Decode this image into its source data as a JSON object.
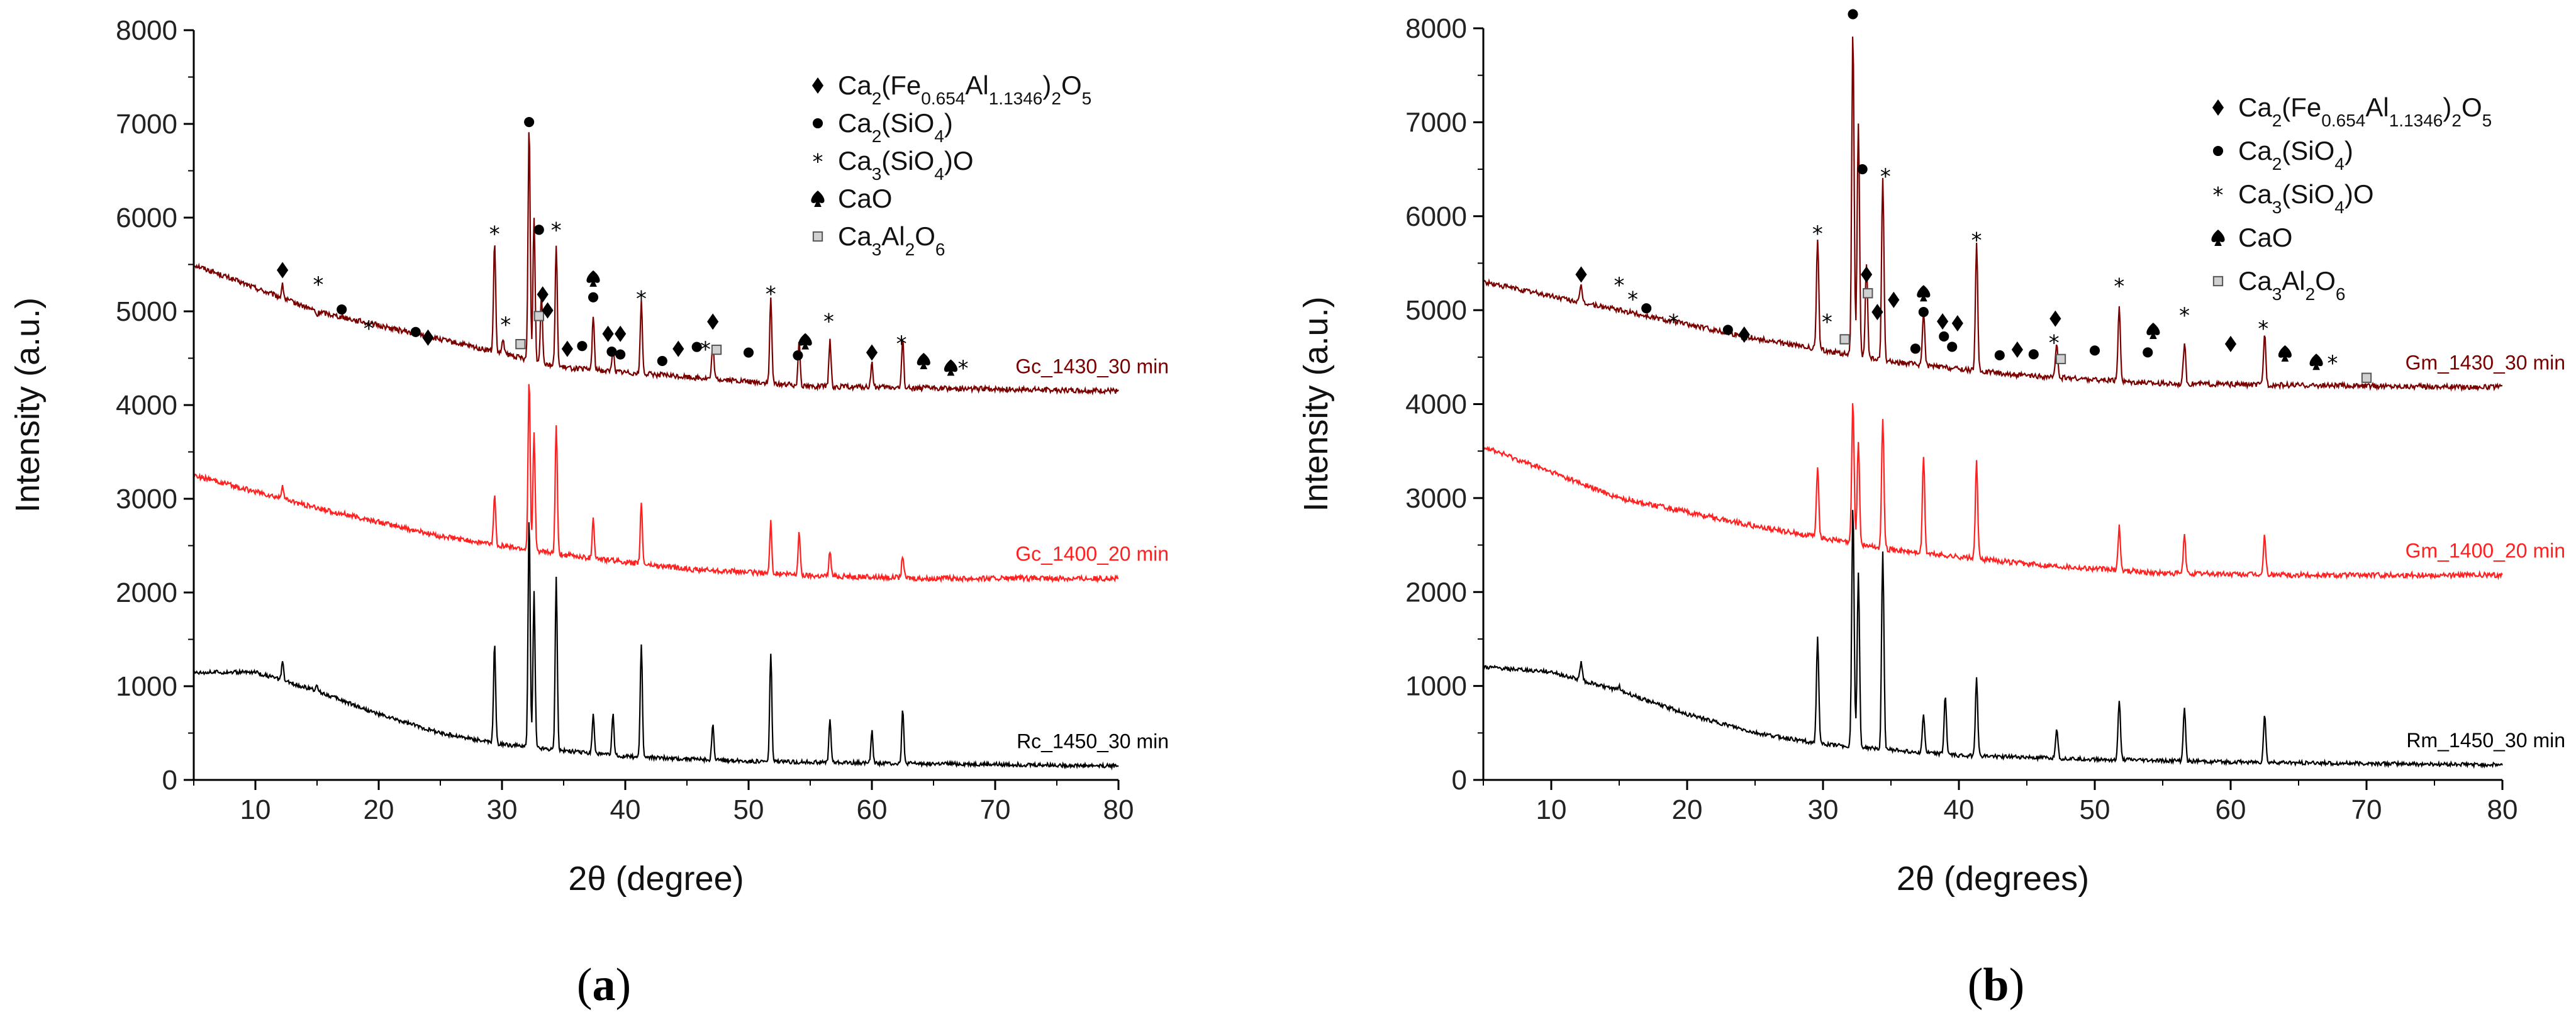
{
  "colors": {
    "series_top": "#7a0000",
    "series_mid": "#ff2020",
    "series_bottom": "#000000",
    "axis": "#000000"
  },
  "legend": [
    {
      "marker": "diamond",
      "name": "Ca2(Fe0.654Al1.1346)2O5"
    },
    {
      "marker": "circle",
      "name": "Ca2(SiO4)"
    },
    {
      "marker": "star",
      "name": "Ca3(SiO4)O"
    },
    {
      "marker": "spade",
      "name": "CaO"
    },
    {
      "marker": "square",
      "name": "Ca3Al2O6"
    }
  ],
  "chart_data": [
    {
      "type": "line",
      "panel_label": "(a)",
      "xlabel": "2θ (degree)",
      "ylabel": "Intensity (a.u.)",
      "xlim": [
        5,
        80
      ],
      "ylim": [
        0,
        8000
      ],
      "xticks": [
        10,
        20,
        30,
        40,
        50,
        60,
        70,
        80
      ],
      "yticks": [
        0,
        1000,
        2000,
        3000,
        4000,
        5000,
        6000,
        7000,
        8000
      ],
      "series": [
        {
          "name": "Gc_1430_30 min",
          "color": "#7a0000",
          "baseline": [
            [
              5,
              5500
            ],
            [
              15,
              5000
            ],
            [
              25,
              4700
            ],
            [
              35,
              4400
            ],
            [
              45,
              4300
            ],
            [
              55,
              4200
            ],
            [
              65,
              4180
            ],
            [
              80,
              4150
            ]
          ],
          "peaks": [
            [
              12.2,
              5280
            ],
            [
              15.0,
              4950
            ],
            [
              29.4,
              5750
            ],
            [
              30.1,
              4700
            ],
            [
              32.2,
              7000
            ],
            [
              32.6,
              6000
            ],
            [
              33.2,
              5200
            ],
            [
              34.4,
              5700
            ],
            [
              37.4,
              4950
            ],
            [
              39.0,
              4600
            ],
            [
              41.3,
              5100
            ],
            [
              47.1,
              4650
            ],
            [
              51.8,
              5150
            ],
            [
              54.1,
              4700
            ],
            [
              56.6,
              4700
            ],
            [
              60.0,
              4450
            ],
            [
              62.5,
              4700
            ]
          ]
        },
        {
          "name": "Gc_1400_20 min",
          "color": "#ff2020",
          "baseline": [
            [
              5,
              3250
            ],
            [
              15,
              2900
            ],
            [
              25,
              2600
            ],
            [
              35,
              2400
            ],
            [
              45,
              2250
            ],
            [
              55,
              2180
            ],
            [
              65,
              2150
            ],
            [
              80,
              2150
            ]
          ],
          "peaks": [
            [
              12.2,
              3150
            ],
            [
              29.4,
              3050
            ],
            [
              32.2,
              4300
            ],
            [
              32.6,
              3700
            ],
            [
              34.4,
              3800
            ],
            [
              37.4,
              2800
            ],
            [
              41.3,
              2950
            ],
            [
              51.8,
              2750
            ],
            [
              54.1,
              2650
            ],
            [
              56.6,
              2450
            ],
            [
              62.5,
              2400
            ]
          ]
        },
        {
          "name": "Rc_1450_30 min",
          "color": "#000000",
          "baseline": [
            [
              5,
              1150
            ],
            [
              10,
              1150
            ],
            [
              15,
              950
            ],
            [
              20,
              700
            ],
            [
              25,
              500
            ],
            [
              30,
              380
            ],
            [
              40,
              250
            ],
            [
              50,
              200
            ],
            [
              60,
              180
            ],
            [
              80,
              150
            ]
          ],
          "peaks": [
            [
              12.2,
              1250
            ],
            [
              15.0,
              1000
            ],
            [
              29.4,
              1450
            ],
            [
              32.2,
              2800
            ],
            [
              32.6,
              2000
            ],
            [
              34.4,
              2150
            ],
            [
              37.4,
              700
            ],
            [
              39.0,
              700
            ],
            [
              41.3,
              1450
            ],
            [
              47.1,
              600
            ],
            [
              51.8,
              1350
            ],
            [
              56.6,
              650
            ],
            [
              60.0,
              520
            ],
            [
              62.5,
              750
            ]
          ]
        }
      ],
      "annotations": [
        {
          "marker": "diamond",
          "x": 12.2,
          "y": 5440
        },
        {
          "marker": "star",
          "x": 15.1,
          "y": 5290
        },
        {
          "marker": "circle",
          "x": 17.0,
          "y": 5020
        },
        {
          "marker": "star",
          "x": 19.2,
          "y": 4820
        },
        {
          "marker": "circle",
          "x": 23.0,
          "y": 4780
        },
        {
          "marker": "diamond",
          "x": 24.0,
          "y": 4720
        },
        {
          "marker": "star",
          "x": 29.4,
          "y": 5830
        },
        {
          "marker": "star",
          "x": 30.3,
          "y": 4860
        },
        {
          "marker": "square",
          "x": 31.5,
          "y": 4650
        },
        {
          "marker": "circle",
          "x": 32.2,
          "y": 7020
        },
        {
          "marker": "circle",
          "x": 33.0,
          "y": 5870
        },
        {
          "marker": "square",
          "x": 33.0,
          "y": 4950
        },
        {
          "marker": "diamond",
          "x": 33.3,
          "y": 5180
        },
        {
          "marker": "diamond",
          "x": 33.7,
          "y": 5010
        },
        {
          "marker": "star",
          "x": 34.4,
          "y": 5870
        },
        {
          "marker": "diamond",
          "x": 35.3,
          "y": 4600
        },
        {
          "marker": "circle",
          "x": 36.5,
          "y": 4630
        },
        {
          "marker": "spade",
          "x": 37.4,
          "y": 5350
        },
        {
          "marker": "circle",
          "x": 37.4,
          "y": 5150
        },
        {
          "marker": "diamond",
          "x": 38.6,
          "y": 4760
        },
        {
          "marker": "circle",
          "x": 38.9,
          "y": 4570
        },
        {
          "marker": "diamond",
          "x": 39.6,
          "y": 4760
        },
        {
          "marker": "circle",
          "x": 39.6,
          "y": 4540
        },
        {
          "marker": "star",
          "x": 41.3,
          "y": 5140
        },
        {
          "marker": "circle",
          "x": 43.0,
          "y": 4470
        },
        {
          "marker": "diamond",
          "x": 44.3,
          "y": 4600
        },
        {
          "marker": "circle",
          "x": 45.8,
          "y": 4620
        },
        {
          "marker": "star",
          "x": 46.5,
          "y": 4600
        },
        {
          "marker": "diamond",
          "x": 47.1,
          "y": 4890
        },
        {
          "marker": "square",
          "x": 47.4,
          "y": 4590
        },
        {
          "marker": "circle",
          "x": 50.0,
          "y": 4560
        },
        {
          "marker": "star",
          "x": 51.8,
          "y": 5190
        },
        {
          "marker": "circle",
          "x": 54.0,
          "y": 4530
        },
        {
          "marker": "spade",
          "x": 54.6,
          "y": 4680
        },
        {
          "marker": "star",
          "x": 56.5,
          "y": 4900
        },
        {
          "marker": "diamond",
          "x": 60.0,
          "y": 4560
        },
        {
          "marker": "star",
          "x": 62.4,
          "y": 4660
        },
        {
          "marker": "spade",
          "x": 64.2,
          "y": 4470
        },
        {
          "marker": "spade",
          "x": 66.4,
          "y": 4400
        },
        {
          "marker": "star",
          "x": 67.4,
          "y": 4400
        }
      ]
    },
    {
      "type": "line",
      "panel_label": "(b)",
      "xlabel": "2θ (degrees)",
      "ylabel": "Intensity (a.u.)",
      "xlim": [
        5,
        80
      ],
      "ylim": [
        0,
        8000
      ],
      "xticks": [
        10,
        20,
        30,
        40,
        50,
        60,
        70,
        80
      ],
      "yticks": [
        0,
        1000,
        2000,
        3000,
        4000,
        5000,
        6000,
        7000,
        8000
      ],
      "series": [
        {
          "name": "Gm_1430_30 min",
          "color": "#7a0000",
          "baseline": [
            [
              5,
              5300
            ],
            [
              15,
              5000
            ],
            [
              25,
              4700
            ],
            [
              35,
              4450
            ],
            [
              45,
              4300
            ],
            [
              55,
              4220
            ],
            [
              65,
              4200
            ],
            [
              80,
              4180
            ]
          ],
          "peaks": [
            [
              12.2,
              5250
            ],
            [
              29.6,
              5750
            ],
            [
              32.2,
              8000
            ],
            [
              32.6,
              7000
            ],
            [
              33.2,
              5500
            ],
            [
              34.4,
              6400
            ],
            [
              37.4,
              5000
            ],
            [
              41.3,
              5700
            ],
            [
              47.2,
              4650
            ],
            [
              51.8,
              5050
            ],
            [
              56.6,
              4650
            ],
            [
              62.5,
              4750
            ]
          ]
        },
        {
          "name": "Gm_1400_20 min",
          "color": "#ff2020",
          "baseline": [
            [
              5,
              3550
            ],
            [
              15,
              3000
            ],
            [
              25,
              2700
            ],
            [
              35,
              2450
            ],
            [
              45,
              2300
            ],
            [
              55,
              2200
            ],
            [
              65,
              2180
            ],
            [
              80,
              2180
            ]
          ],
          "peaks": [
            [
              12.2,
              3150
            ],
            [
              29.6,
              3350
            ],
            [
              32.2,
              4050
            ],
            [
              32.6,
              3600
            ],
            [
              34.4,
              3850
            ],
            [
              37.4,
              3450
            ],
            [
              41.3,
              3400
            ],
            [
              51.8,
              2700
            ],
            [
              56.6,
              2600
            ],
            [
              62.5,
              2600
            ]
          ]
        },
        {
          "name": "Rm_1450_30 min",
          "color": "#000000",
          "baseline": [
            [
              5,
              1200
            ],
            [
              10,
              1150
            ],
            [
              15,
              950
            ],
            [
              20,
              700
            ],
            [
              25,
              500
            ],
            [
              30,
              380
            ],
            [
              40,
              260
            ],
            [
              50,
              220
            ],
            [
              60,
              190
            ],
            [
              80,
              160
            ]
          ],
          "peaks": [
            [
              12.2,
              1250
            ],
            [
              15.0,
              1000
            ],
            [
              29.6,
              1520
            ],
            [
              32.2,
              2950
            ],
            [
              32.6,
              2200
            ],
            [
              34.4,
              2450
            ],
            [
              37.4,
              700
            ],
            [
              39.0,
              900
            ],
            [
              41.3,
              1100
            ],
            [
              47.2,
              560
            ],
            [
              51.8,
              850
            ],
            [
              56.6,
              780
            ],
            [
              62.5,
              700
            ]
          ]
        }
      ],
      "annotations": [
        {
          "marker": "diamond",
          "x": 12.2,
          "y": 5380
        },
        {
          "marker": "star",
          "x": 15.0,
          "y": 5270
        },
        {
          "marker": "star",
          "x": 16.0,
          "y": 5120
        },
        {
          "marker": "circle",
          "x": 17.0,
          "y": 5020
        },
        {
          "marker": "star",
          "x": 19.0,
          "y": 4880
        },
        {
          "marker": "circle",
          "x": 23.0,
          "y": 4790
        },
        {
          "marker": "diamond",
          "x": 24.2,
          "y": 4740
        },
        {
          "marker": "star",
          "x": 29.6,
          "y": 5820
        },
        {
          "marker": "star",
          "x": 30.3,
          "y": 4880
        },
        {
          "marker": "square",
          "x": 31.6,
          "y": 4690
        },
        {
          "marker": "circle",
          "x": 32.2,
          "y": 8150
        },
        {
          "marker": "circle",
          "x": 32.9,
          "y": 6500
        },
        {
          "marker": "diamond",
          "x": 33.2,
          "y": 5380
        },
        {
          "marker": "square",
          "x": 33.3,
          "y": 5180
        },
        {
          "marker": "diamond",
          "x": 34.0,
          "y": 4980
        },
        {
          "marker": "star",
          "x": 34.6,
          "y": 6430
        },
        {
          "marker": "diamond",
          "x": 35.2,
          "y": 5110
        },
        {
          "marker": "circle",
          "x": 36.8,
          "y": 4590
        },
        {
          "marker": "spade",
          "x": 37.4,
          "y": 5180
        },
        {
          "marker": "circle",
          "x": 37.4,
          "y": 4980
        },
        {
          "marker": "diamond",
          "x": 38.8,
          "y": 4880
        },
        {
          "marker": "circle",
          "x": 38.9,
          "y": 4720
        },
        {
          "marker": "diamond",
          "x": 39.9,
          "y": 4860
        },
        {
          "marker": "circle",
          "x": 39.5,
          "y": 4610
        },
        {
          "marker": "star",
          "x": 41.3,
          "y": 5750
        },
        {
          "marker": "circle",
          "x": 43.0,
          "y": 4520
        },
        {
          "marker": "diamond",
          "x": 44.3,
          "y": 4580
        },
        {
          "marker": "circle",
          "x": 45.5,
          "y": 4530
        },
        {
          "marker": "diamond",
          "x": 47.1,
          "y": 4910
        },
        {
          "marker": "star",
          "x": 47.0,
          "y": 4660
        },
        {
          "marker": "square",
          "x": 47.5,
          "y": 4480
        },
        {
          "marker": "circle",
          "x": 50.0,
          "y": 4570
        },
        {
          "marker": "star",
          "x": 51.8,
          "y": 5260
        },
        {
          "marker": "circle",
          "x": 53.9,
          "y": 4550
        },
        {
          "marker": "spade",
          "x": 54.3,
          "y": 4780
        },
        {
          "marker": "star",
          "x": 56.6,
          "y": 4950
        },
        {
          "marker": "diamond",
          "x": 60.0,
          "y": 4640
        },
        {
          "marker": "star",
          "x": 62.4,
          "y": 4810
        },
        {
          "marker": "spade",
          "x": 64.0,
          "y": 4540
        },
        {
          "marker": "spade",
          "x": 66.3,
          "y": 4450
        },
        {
          "marker": "star",
          "x": 67.5,
          "y": 4440
        },
        {
          "marker": "square",
          "x": 70.0,
          "y": 4280
        }
      ]
    }
  ]
}
